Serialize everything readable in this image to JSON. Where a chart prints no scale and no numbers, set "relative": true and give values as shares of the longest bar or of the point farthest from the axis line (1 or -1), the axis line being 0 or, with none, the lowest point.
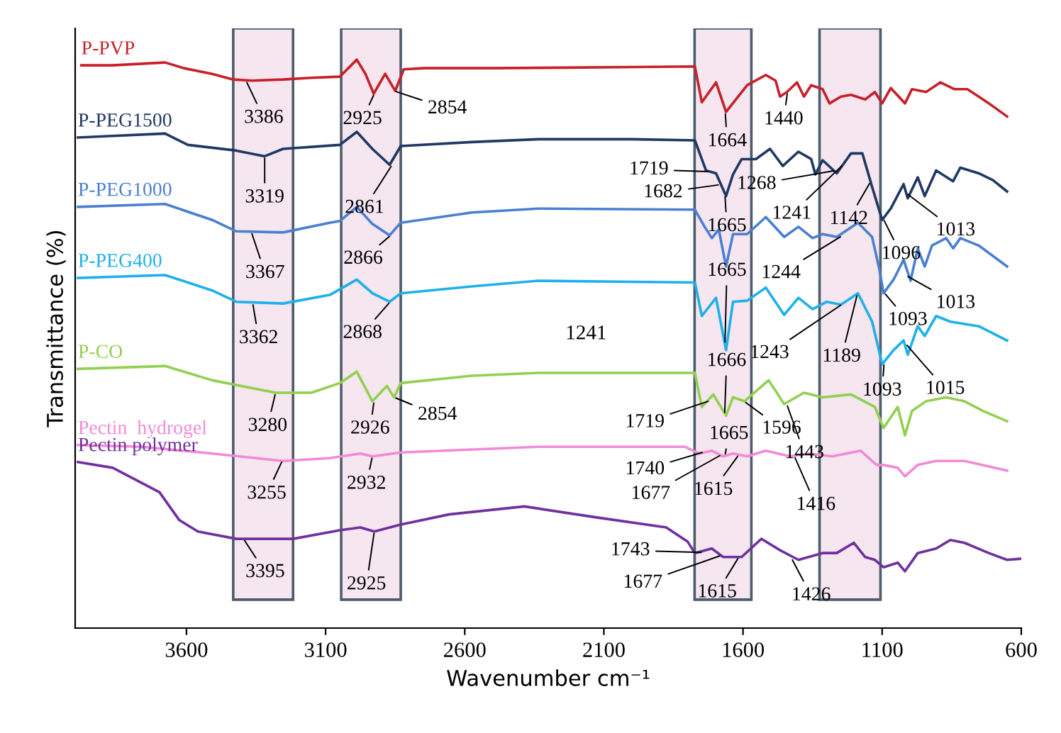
{
  "chart_data": {
    "type": "line",
    "relative": true,
    "xlabel": "Wavenumber cm⁻¹",
    "ylabel": "Transmittance (%)",
    "xlim": [
      4000,
      600
    ],
    "xticks": [
      3600,
      3100,
      2600,
      2100,
      1600,
      1100,
      600
    ],
    "grid": false,
    "legend": false,
    "tick_labels": "x",
    "marker": "none",
    "line_style": "solid",
    "bands": [
      {
        "axis": "x",
        "from": 3432,
        "to": 3217,
        "color": "#f5e6ef"
      },
      {
        "axis": "x",
        "from": 3044,
        "to": 2830,
        "color": "#f5e6ef"
      },
      {
        "axis": "x",
        "from": 1774,
        "to": 1570,
        "color": "#f5e6ef"
      },
      {
        "axis": "x",
        "from": 1325,
        "to": 1106,
        "color": "#f5e6ef"
      }
    ],
    "series": [
      {
        "name": "P-PVP",
        "color": "#c8202a",
        "x": [
          3978,
          3865,
          3677,
          3610,
          3508,
          3432,
          3365,
          3253,
          3151,
          3049,
          2988,
          2957,
          2927,
          2886,
          2850,
          2819,
          2743,
          2488,
          2233,
          1978,
          1773,
          1748,
          1697,
          1661,
          1585,
          1518,
          1483,
          1467,
          1442,
          1406,
          1381,
          1355,
          1314,
          1289,
          1248,
          1212,
          1161,
          1126,
          1100,
          1069,
          1018,
          993,
          942,
          891,
          840,
          794,
          753,
          702,
          651
        ],
        "values": [
          0.99,
          0.99,
          0.995,
          0.985,
          0.975,
          0.965,
          0.963,
          0.965,
          0.968,
          0.97,
          1.0,
          0.975,
          0.94,
          0.975,
          0.945,
          0.983,
          0.985,
          0.985,
          0.986,
          0.987,
          0.988,
          0.925,
          0.96,
          0.908,
          0.955,
          0.973,
          0.963,
          0.935,
          0.943,
          0.96,
          0.935,
          0.955,
          0.948,
          0.923,
          0.935,
          0.938,
          0.93,
          0.943,
          0.923,
          0.95,
          0.923,
          0.948,
          0.943,
          0.96,
          0.948,
          0.948,
          0.935,
          0.918,
          0.9
        ]
      },
      {
        "name": "P-PEG1500",
        "color": "#203864",
        "x": [
          3990,
          3677,
          3595,
          3421,
          3319,
          3253,
          3049,
          2988,
          2932,
          2870,
          2830,
          2574,
          2335,
          2000,
          1773,
          1733,
          1697,
          1661,
          1636,
          1605,
          1554,
          1503,
          1457,
          1401,
          1355,
          1340,
          1314,
          1263,
          1212,
          1171,
          1136,
          1100,
          1069,
          1023,
          1008,
          972,
          947,
          906,
          845,
          819,
          753,
          702,
          651
        ],
        "values": [
          0.863,
          0.87,
          0.85,
          0.84,
          0.83,
          0.843,
          0.85,
          0.873,
          0.843,
          0.815,
          0.848,
          0.855,
          0.86,
          0.86,
          0.858,
          0.805,
          0.8,
          0.76,
          0.798,
          0.825,
          0.825,
          0.843,
          0.813,
          0.838,
          0.825,
          0.798,
          0.823,
          0.8,
          0.835,
          0.835,
          0.776,
          0.718,
          0.738,
          0.781,
          0.756,
          0.793,
          0.76,
          0.805,
          0.786,
          0.81,
          0.8,
          0.788,
          0.768
        ]
      },
      {
        "name": "P-PEG1000",
        "color": "#4a7fd1",
        "x": [
          3990,
          3677,
          3508,
          3421,
          3253,
          3085,
          3049,
          2988,
          2932,
          2870,
          2830,
          2574,
          2335,
          1773,
          1738,
          1712,
          1687,
          1661,
          1636,
          1585,
          1518,
          1452,
          1401,
          1350,
          1314,
          1263,
          1187,
          1136,
          1110,
          1095,
          1059,
          1023,
          998,
          972,
          947,
          921,
          870,
          845,
          819,
          753,
          651
        ],
        "values": [
          0.741,
          0.746,
          0.718,
          0.698,
          0.696,
          0.713,
          0.716,
          0.741,
          0.711,
          0.691,
          0.713,
          0.731,
          0.738,
          0.736,
          0.706,
          0.686,
          0.701,
          0.636,
          0.693,
          0.693,
          0.723,
          0.688,
          0.706,
          0.686,
          0.693,
          0.688,
          0.713,
          0.688,
          0.631,
          0.589,
          0.613,
          0.648,
          0.611,
          0.668,
          0.636,
          0.673,
          0.686,
          0.668,
          0.686,
          0.673,
          0.636
        ]
      },
      {
        "name": "P-PEG400",
        "color": "#1eb0ea",
        "x": [
          3990,
          3677,
          3508,
          3421,
          3253,
          3085,
          2988,
          2932,
          2870,
          2830,
          2574,
          2335,
          1773,
          1748,
          1697,
          1661,
          1636,
          1585,
          1518,
          1452,
          1401,
          1350,
          1299,
          1248,
          1187,
          1136,
          1100,
          1059,
          1023,
          1008,
          972,
          947,
          906,
          855,
          753,
          651
        ],
        "values": [
          0.616,
          0.621,
          0.594,
          0.574,
          0.571,
          0.586,
          0.613,
          0.589,
          0.574,
          0.589,
          0.601,
          0.611,
          0.608,
          0.549,
          0.581,
          0.489,
          0.574,
          0.576,
          0.599,
          0.551,
          0.581,
          0.561,
          0.574,
          0.569,
          0.589,
          0.539,
          0.464,
          0.489,
          0.506,
          0.481,
          0.531,
          0.514,
          0.549,
          0.539,
          0.531,
          0.506
        ]
      },
      {
        "name": "P-CO",
        "color": "#92d050",
        "x": [
          3990,
          3677,
          3508,
          3280,
          3151,
          3049,
          2988,
          2932,
          2880,
          2854,
          2830,
          2574,
          2335,
          2000,
          1773,
          1748,
          1707,
          1661,
          1636,
          1595,
          1508,
          1452,
          1381,
          1314,
          1212,
          1126,
          1095,
          1044,
          1018,
          993,
          942,
          870,
          804,
          738,
          651
        ],
        "values": [
          0.456,
          0.461,
          0.436,
          0.414,
          0.414,
          0.431,
          0.451,
          0.399,
          0.426,
          0.406,
          0.431,
          0.444,
          0.449,
          0.449,
          0.449,
          0.389,
          0.411,
          0.374,
          0.406,
          0.399,
          0.436,
          0.394,
          0.414,
          0.406,
          0.411,
          0.389,
          0.352,
          0.389,
          0.339,
          0.382,
          0.399,
          0.406,
          0.399,
          0.382,
          0.364
        ]
      },
      {
        "name": "Pectin  hydrogel",
        "color": "#f28ad6",
        "x": [
          3990,
          3763,
          3508,
          3253,
          3085,
          2975,
          2932,
          2830,
          2335,
          1809,
          1758,
          1712,
          1671,
          1636,
          1585,
          1518,
          1432,
          1365,
          1279,
          1177,
          1120,
          1095,
          1044,
          1018,
          972,
          906,
          804,
          651
        ],
        "values": [
          0.322,
          0.319,
          0.307,
          0.294,
          0.299,
          0.307,
          0.302,
          0.309,
          0.319,
          0.319,
          0.307,
          0.312,
          0.302,
          0.307,
          0.302,
          0.312,
          0.302,
          0.307,
          0.302,
          0.312,
          0.287,
          0.287,
          0.282,
          0.267,
          0.287,
          0.294,
          0.294,
          0.277
        ]
      },
      {
        "name": "Pectin polymer",
        "color": "#7030a0",
        "x": [
          3990,
          3865,
          3697,
          3626,
          3559,
          3421,
          3217,
          3049,
          2975,
          2925,
          2830,
          2656,
          2386,
          2131,
          1876,
          1799,
          1773,
          1712,
          1671,
          1605,
          1534,
          1467,
          1401,
          1314,
          1263,
          1202,
          1161,
          1126,
          1095,
          1044,
          1018,
          972,
          906,
          855,
          804,
          717,
          651,
          600
        ],
        "values": [
          0.292,
          0.282,
          0.239,
          0.19,
          0.17,
          0.157,
          0.157,
          0.172,
          0.177,
          0.17,
          0.182,
          0.2,
          0.214,
          0.195,
          0.177,
          0.152,
          0.132,
          0.14,
          0.125,
          0.125,
          0.157,
          0.137,
          0.12,
          0.132,
          0.132,
          0.15,
          0.125,
          0.12,
          0.107,
          0.115,
          0.1,
          0.132,
          0.14,
          0.155,
          0.15,
          0.132,
          0.12,
          0.122
        ]
      }
    ],
    "annotations": [
      "1241",
      {
        "text": "3386",
        "x": 3386,
        "y": 0.963
      },
      {
        "text": "2925",
        "x": 2925,
        "y": 0.94
      },
      {
        "text": "2854",
        "x": 2854,
        "y": 0.945
      },
      {
        "text": "3319",
        "x": 3319,
        "y": 0.83
      },
      {
        "text": "2861",
        "x": 2861,
        "y": 0.815
      },
      {
        "text": "3367",
        "x": 3367,
        "y": 0.697
      },
      {
        "text": "2866",
        "x": 2866,
        "y": 0.691
      },
      {
        "text": "3362",
        "x": 3362,
        "y": 0.572
      },
      {
        "text": "2868",
        "x": 2868,
        "y": 0.574
      },
      {
        "text": "1664",
        "x": 1664,
        "y": 0.908
      },
      {
        "text": "1440",
        "x": 1440,
        "y": 0.943
      },
      {
        "text": "1719",
        "x": 1719,
        "y": 0.803
      },
      {
        "text": "1682",
        "x": 1682,
        "y": 0.78
      },
      {
        "text": "1665",
        "x": 1665,
        "y": 0.762
      },
      {
        "text": "1268",
        "x": 1268,
        "y": 0.805
      },
      {
        "text": "1241",
        "x": 1241,
        "y": 0.815
      },
      {
        "text": "1142",
        "x": 1142,
        "y": 0.785
      },
      {
        "text": "1013",
        "x": 1013,
        "y": 0.765
      },
      {
        "text": "1096",
        "x": 1096,
        "y": 0.72
      },
      {
        "text": "1244",
        "x": 1244,
        "y": 0.69
      },
      {
        "text": "1665",
        "x": 1665,
        "y": 0.5
      },
      {
        "text": "1093",
        "x": 1093,
        "y": 0.59
      },
      {
        "text": "1013",
        "x": 1013,
        "y": 0.62
      },
      {
        "text": "1243",
        "x": 1243,
        "y": 0.57
      },
      {
        "text": "1189",
        "x": 1189,
        "y": 0.588
      },
      {
        "text": "1666",
        "x": 1666,
        "y": 0.376
      },
      {
        "text": "1093",
        "x": 1093,
        "y": 0.466
      },
      {
        "text": "1015",
        "x": 1015,
        "y": 0.5
      },
      {
        "text": "3280",
        "x": 3280,
        "y": 0.414
      },
      {
        "text": "2926",
        "x": 2926,
        "y": 0.399
      },
      {
        "text": "2854",
        "x": 2854,
        "y": 0.406
      },
      {
        "text": "3255",
        "x": 3255,
        "y": 0.295
      },
      {
        "text": "2932",
        "x": 2932,
        "y": 0.302
      },
      {
        "text": "3395",
        "x": 3395,
        "y": 0.157
      },
      {
        "text": "2925",
        "x": 2925,
        "y": 0.17
      },
      {
        "text": "1719",
        "x": 1719,
        "y": 0.4
      },
      {
        "text": "1596",
        "x": 1596,
        "y": 0.399
      },
      {
        "text": "1443",
        "x": 1443,
        "y": 0.394
      },
      {
        "text": "1665",
        "x": 1665,
        "y": 0.303
      },
      {
        "text": "1740",
        "x": 1740,
        "y": 0.31
      },
      {
        "text": "1677",
        "x": 1677,
        "y": 0.305
      },
      {
        "text": "1615",
        "x": 1615,
        "y": 0.305
      },
      {
        "text": "1416",
        "x": 1416,
        "y": 0.303
      },
      {
        "text": "1743",
        "x": 1743,
        "y": 0.133
      },
      {
        "text": "1677",
        "x": 1677,
        "y": 0.128
      },
      {
        "text": "1615",
        "x": 1615,
        "y": 0.125
      },
      {
        "text": "1426",
        "x": 1426,
        "y": 0.123
      }
    ]
  }
}
